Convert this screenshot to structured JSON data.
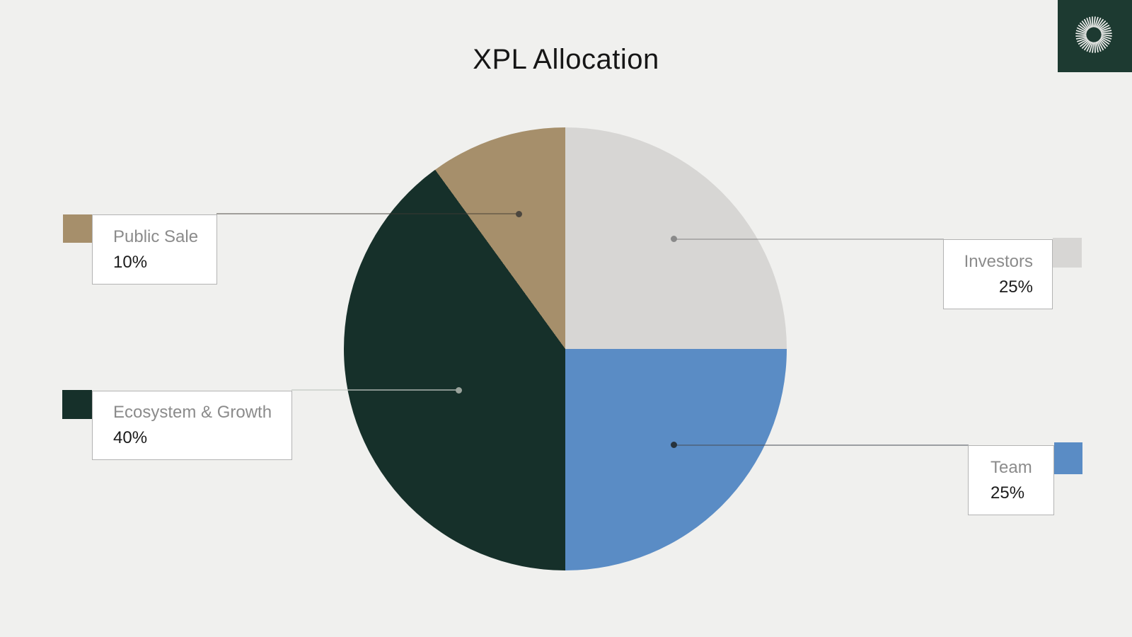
{
  "page": {
    "background_color": "#f0f0ee"
  },
  "chart_data": {
    "type": "pie",
    "title": "XPL Allocation",
    "direction": "clockwise",
    "start_angle_deg": 0,
    "legend_position": "callout-cards",
    "segments": [
      {
        "label": "Investors",
        "value": 25,
        "display": "25%",
        "color": "#d7d6d4"
      },
      {
        "label": "Team",
        "value": 25,
        "display": "25%",
        "color": "#5a8cc5"
      },
      {
        "label": "Ecosystem & Growth",
        "value": 40,
        "display": "40%",
        "color": "#16302a"
      },
      {
        "label": "Public Sale",
        "value": 10,
        "display": "10%",
        "color": "#a68f6b"
      }
    ]
  },
  "logo": {
    "icon": "plasma-swirl-icon",
    "background_color": "#1d3a31",
    "foreground_color": "#f1f1ef"
  }
}
